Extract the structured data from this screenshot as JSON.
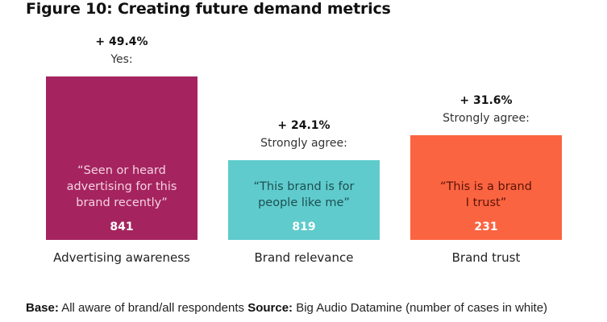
{
  "title": "Figure 10: Creating future demand metrics",
  "chart_data": {
    "type": "bar",
    "title": "Figure 10: Creating future demand metrics",
    "categories": [
      "Advertising awareness",
      "Brand relevance",
      "Brand trust"
    ],
    "values": [
      49.4,
      24.1,
      31.6
    ],
    "value_labels": [
      "+ 49.4%",
      "+ 24.1%",
      "+ 31.6%"
    ],
    "response_labels": [
      "Yes:",
      "Strongly agree:",
      "Strongly agree:"
    ],
    "quotes": [
      [
        "“Seen or heard",
        "advertising for this",
        "brand recently”"
      ],
      [
        "“This brand is for",
        "people like me”"
      ],
      [
        "“This is a brand",
        "I trust”"
      ]
    ],
    "counts": [
      "841",
      "819",
      "231"
    ],
    "colors": [
      "#a5245f",
      "#5fcbcc",
      "#fb6440"
    ],
    "quote_colors": [
      "#f4d2e2",
      "#1d4f52",
      "#5a1408"
    ],
    "xlabel": "",
    "ylabel": "",
    "ylim": [
      0,
      49.4
    ],
    "grid": false
  },
  "footer": {
    "base_label": "Base:",
    "base_text": "All aware of brand/all respondents",
    "source_label": "Source:",
    "source_text": "Big Audio Datamine (number of cases in white)"
  }
}
